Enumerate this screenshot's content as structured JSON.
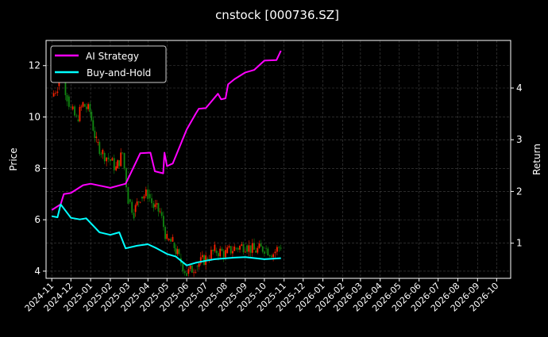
{
  "chart_data": {
    "type": "line",
    "title": "cnstock [000736.SZ]",
    "ylabel_left": "Price",
    "ylabel_right": "Return",
    "xlim": [
      "2024-10-23",
      "2026-10-23"
    ],
    "ylim_left": [
      3.72,
      12.98
    ],
    "ylim_right": [
      0.32,
      4.92
    ],
    "yticks_left": [
      4,
      6,
      8,
      10,
      12
    ],
    "yticks_right": [
      1,
      2,
      3,
      4
    ],
    "xticks": [
      "2024-11",
      "2024-12",
      "2025-01",
      "2025-02",
      "2025-03",
      "2025-04",
      "2025-05",
      "2025-06",
      "2025-07",
      "2025-08",
      "2025-09",
      "2025-10",
      "2025-11",
      "2025-12",
      "2026-01",
      "2026-02",
      "2026-03",
      "2026-04",
      "2026-05",
      "2026-06",
      "2026-07",
      "2026-08",
      "2026-09",
      "2026-10"
    ],
    "grid": true,
    "legend_placement": "top-left",
    "colors": {
      "background": "#000000",
      "up": "#ff2200",
      "down": "#118811",
      "strategy": "#ff00ff",
      "buy_hold": "#00ffff",
      "grid": "#444444"
    },
    "price": [
      [
        "2024-11-01",
        10.8
      ],
      [
        "2024-11-10",
        11.2
      ],
      [
        "2024-11-15",
        11.9
      ],
      [
        "2024-11-25",
        10.8
      ],
      [
        "2024-12-01",
        10.3
      ],
      [
        "2024-12-10",
        9.9
      ],
      [
        "2024-12-20",
        10.5
      ],
      [
        "2024-12-31",
        10.2
      ],
      [
        "2025-01-10",
        9.0
      ],
      [
        "2025-01-20",
        8.6
      ],
      [
        "2025-02-01",
        8.3
      ],
      [
        "2025-02-10",
        8.0
      ],
      [
        "2025-02-20",
        8.6
      ],
      [
        "2025-03-01",
        6.8
      ],
      [
        "2025-03-10",
        6.3
      ],
      [
        "2025-03-20",
        6.9
      ],
      [
        "2025-04-01",
        7.0
      ],
      [
        "2025-04-10",
        6.5
      ],
      [
        "2025-04-20",
        6.3
      ],
      [
        "2025-05-01",
        5.2
      ],
      [
        "2025-05-10",
        5.1
      ],
      [
        "2025-05-20",
        4.5
      ],
      [
        "2025-06-01",
        3.9
      ],
      [
        "2025-06-15",
        4.2
      ],
      [
        "2025-07-01",
        4.5
      ],
      [
        "2025-07-15",
        4.8
      ],
      [
        "2025-08-01",
        4.7
      ],
      [
        "2025-08-15",
        4.9
      ],
      [
        "2025-09-01",
        5.0
      ],
      [
        "2025-09-15",
        4.8
      ],
      [
        "2025-10-01",
        4.9
      ],
      [
        "2025-10-15",
        4.7
      ],
      [
        "2025-10-27",
        5.0
      ]
    ],
    "series": [
      {
        "name": "AI Strategy",
        "axis": "right",
        "values": [
          [
            "2024-11-01",
            1.64
          ],
          [
            "2024-11-15",
            1.75
          ],
          [
            "2024-11-20",
            1.95
          ],
          [
            "2024-12-01",
            1.97
          ],
          [
            "2024-12-20",
            2.12
          ],
          [
            "2025-01-01",
            2.15
          ],
          [
            "2025-02-01",
            2.07
          ],
          [
            "2025-02-25",
            2.15
          ],
          [
            "2025-03-10",
            2.48
          ],
          [
            "2025-03-20",
            2.74
          ],
          [
            "2025-04-05",
            2.75
          ],
          [
            "2025-04-12",
            2.39
          ],
          [
            "2025-04-25",
            2.35
          ],
          [
            "2025-04-27",
            2.75
          ],
          [
            "2025-05-01",
            2.49
          ],
          [
            "2025-05-10",
            2.54
          ],
          [
            "2025-06-01",
            3.2
          ],
          [
            "2025-06-15",
            3.5
          ],
          [
            "2025-06-20",
            3.6
          ],
          [
            "2025-07-01",
            3.61
          ],
          [
            "2025-07-20",
            3.89
          ],
          [
            "2025-07-25",
            3.78
          ],
          [
            "2025-08-01",
            3.8
          ],
          [
            "2025-08-05",
            4.07
          ],
          [
            "2025-08-15",
            4.17
          ],
          [
            "2025-09-01",
            4.3
          ],
          [
            "2025-09-15",
            4.35
          ],
          [
            "2025-10-01",
            4.53
          ],
          [
            "2025-10-20",
            4.54
          ],
          [
            "2025-10-27",
            4.72
          ]
        ]
      },
      {
        "name": "Buy-and-Hold",
        "axis": "right",
        "values": [
          [
            "2024-11-01",
            1.52
          ],
          [
            "2024-11-10",
            1.5
          ],
          [
            "2024-11-15",
            1.75
          ],
          [
            "2024-12-01",
            1.49
          ],
          [
            "2024-12-15",
            1.46
          ],
          [
            "2024-12-25",
            1.48
          ],
          [
            "2025-01-15",
            1.21
          ],
          [
            "2025-02-01",
            1.16
          ],
          [
            "2025-02-15",
            1.21
          ],
          [
            "2025-02-25",
            0.9
          ],
          [
            "2025-03-15",
            0.95
          ],
          [
            "2025-04-01",
            0.98
          ],
          [
            "2025-04-15",
            0.9
          ],
          [
            "2025-05-01",
            0.79
          ],
          [
            "2025-05-15",
            0.74
          ],
          [
            "2025-06-01",
            0.57
          ],
          [
            "2025-06-15",
            0.62
          ],
          [
            "2025-07-01",
            0.66
          ],
          [
            "2025-07-15",
            0.69
          ],
          [
            "2025-08-15",
            0.72
          ],
          [
            "2025-09-01",
            0.73
          ],
          [
            "2025-10-01",
            0.69
          ],
          [
            "2025-10-27",
            0.71
          ]
        ]
      }
    ]
  }
}
